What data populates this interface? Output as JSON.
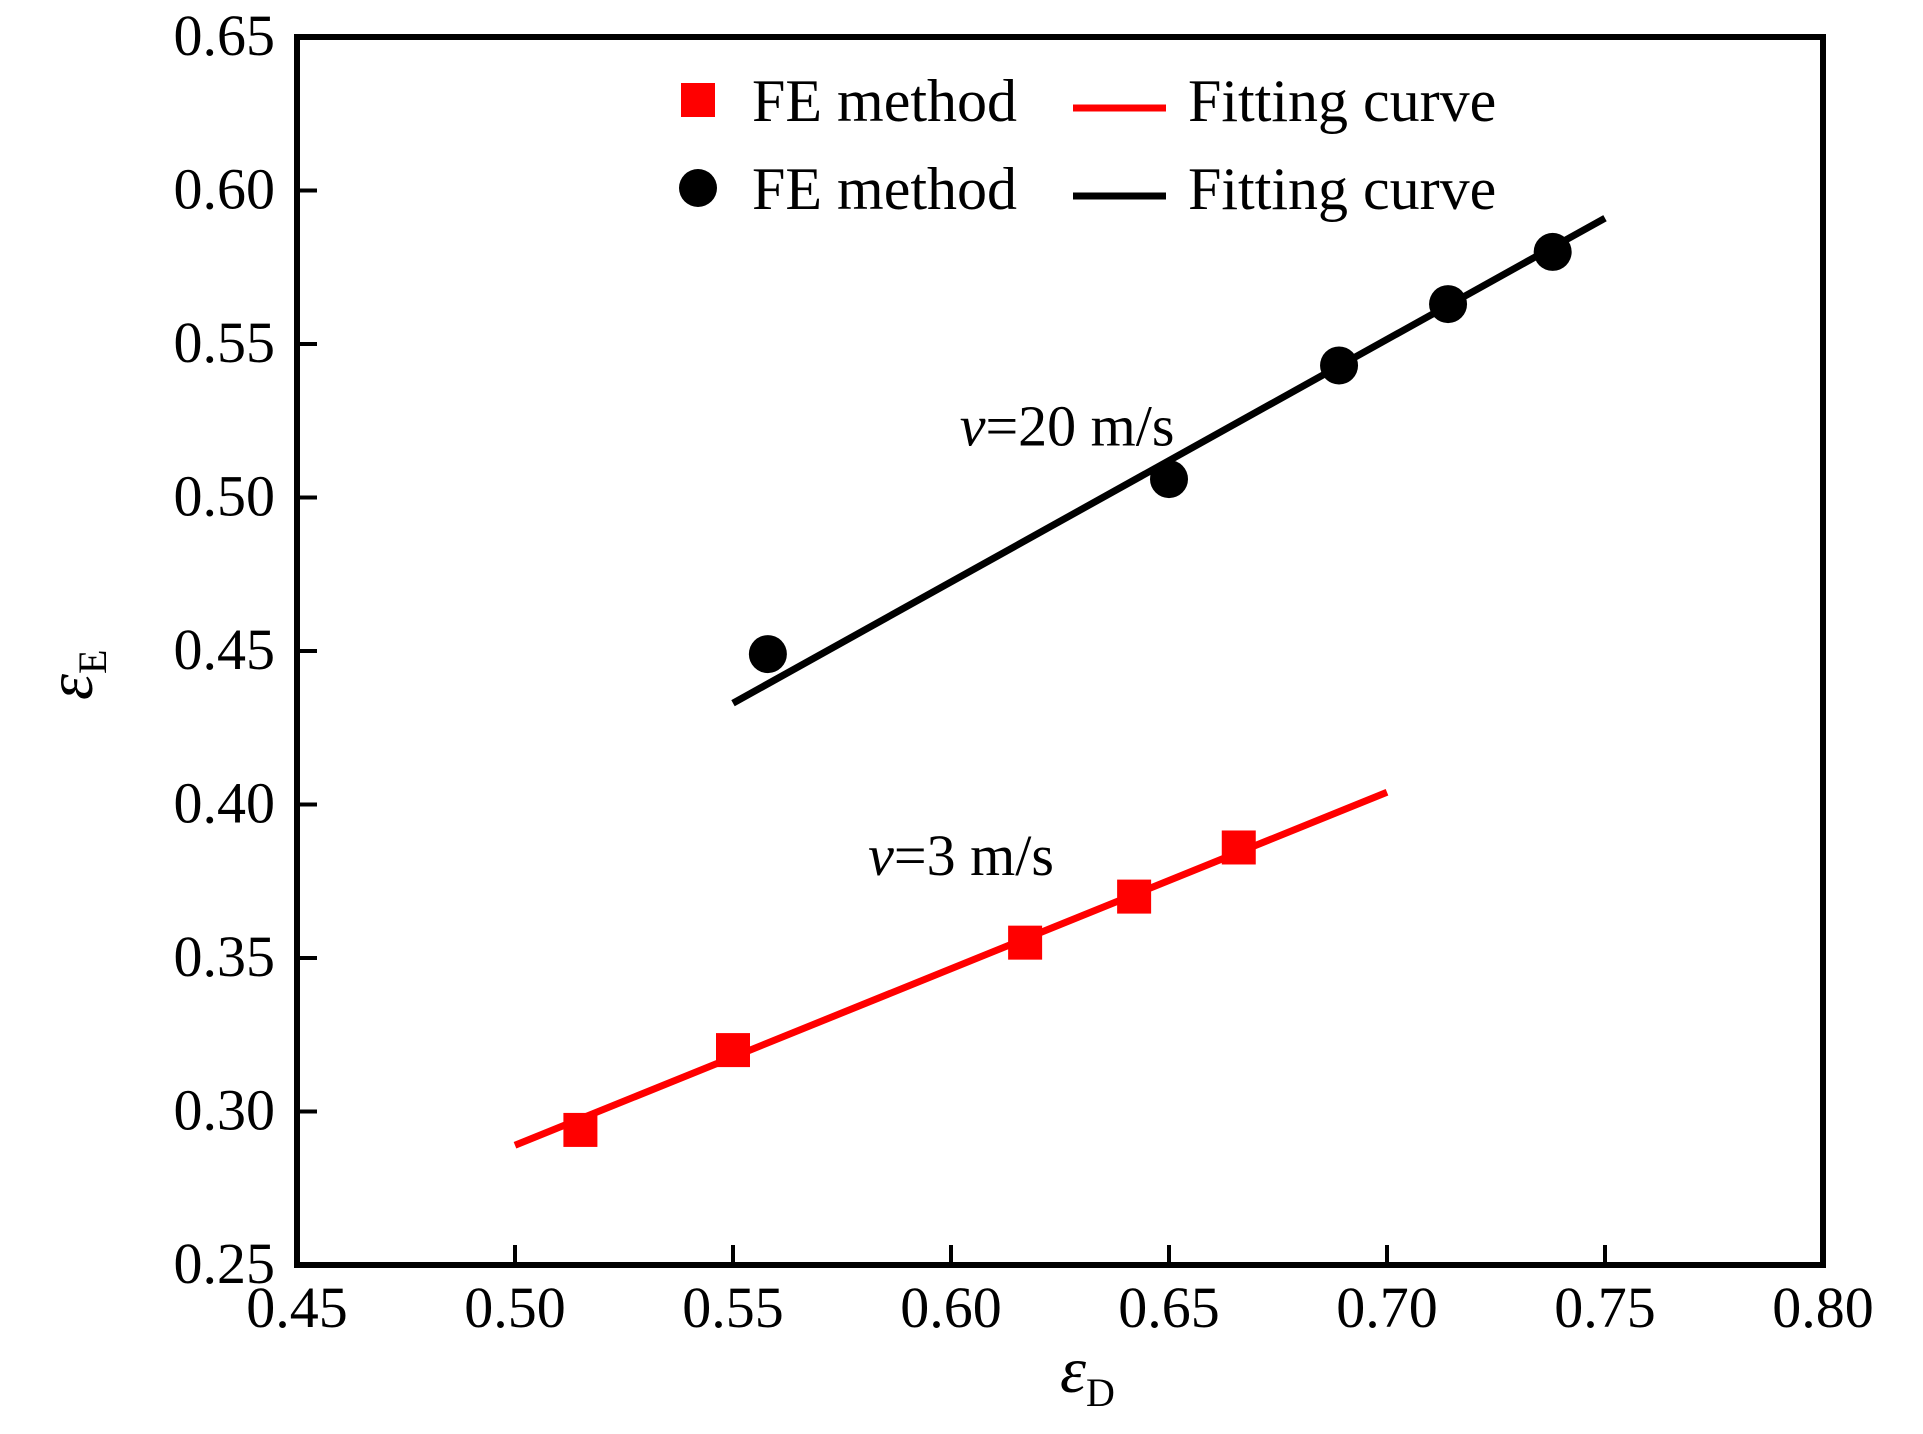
{
  "chart_data": {
    "type": "scatter",
    "xlabel": "ε",
    "xlabel_sub": "D",
    "ylabel": "ε",
    "ylabel_sub": "E",
    "xlim": [
      0.45,
      0.8
    ],
    "ylim": [
      0.25,
      0.65
    ],
    "x_ticks": [
      "0.45",
      "0.50",
      "0.55",
      "0.60",
      "0.65",
      "0.70",
      "0.75",
      "0.80"
    ],
    "y_ticks": [
      "0.25",
      "0.30",
      "0.35",
      "0.40",
      "0.45",
      "0.50",
      "0.55",
      "0.60",
      "0.65"
    ],
    "grid": false,
    "legend_position": "top",
    "series": [
      {
        "name": "FE method",
        "marker": "square",
        "color": "#ff0000",
        "x": [
          0.515,
          0.55,
          0.617,
          0.642,
          0.666
        ],
        "y": [
          0.294,
          0.32,
          0.355,
          0.37,
          0.386
        ],
        "fit": {
          "name": "Fitting curve",
          "x": [
            0.5,
            0.7
          ],
          "y": [
            0.289,
            0.404
          ]
        },
        "annotation": {
          "prefix": "v",
          "text": "=3 m/s",
          "x": 0.581,
          "y": 0.377
        }
      },
      {
        "name": "FE method",
        "marker": "circle",
        "color": "#000000",
        "x": [
          0.558,
          0.65,
          0.689,
          0.714,
          0.738
        ],
        "y": [
          0.449,
          0.506,
          0.543,
          0.563,
          0.58
        ],
        "fit": {
          "name": "Fitting curve",
          "x": [
            0.55,
            0.75
          ],
          "y": [
            0.433,
            0.591
          ]
        },
        "annotation": {
          "prefix": "v",
          "text": "=20 m/s",
          "x": 0.602,
          "y": 0.517
        }
      }
    ]
  }
}
